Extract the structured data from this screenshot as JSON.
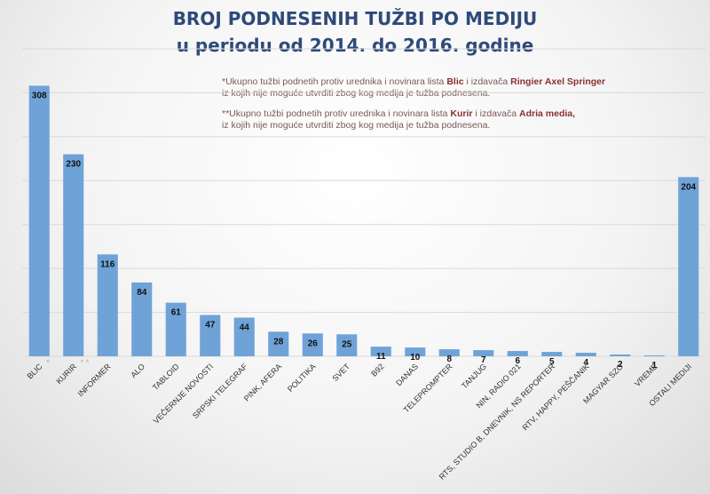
{
  "title": {
    "line1": "BROJ PODNESENIH TUŽBI  PO MEDIJU",
    "line2": "u periodu od 2014. do 2016. godine"
  },
  "notes": {
    "note1_a": "*Ukupno tužbi podnetih protiv urednika i novinara lista ",
    "note1_b": "Blic",
    "note1_c": " i izdavača ",
    "note1_d": "Ringier Axel Springer",
    "note1_e": "iz kojih nije moguće utvrditi zbog kog medija je tužba podnesena.",
    "note2_a": "**Ukupno tužbi podnetih protiv urednika i novinara lista ",
    "note2_b": "Kurir",
    "note2_c": " i izdavača ",
    "note2_d": "Adria media,",
    "note2_e": "iz kojih nije moguće utvrditi zbog kog medija je tužba podnesena."
  },
  "chart_data": {
    "type": "bar",
    "title": "BROJ PODNESENIH TUŽBI  PO MEDIJU u periodu od 2014. do 2016. godine",
    "xlabel": "",
    "ylabel": "",
    "ylim": [
      0,
      350
    ],
    "grid": true,
    "bar_color": "#6fa3d8",
    "categories": [
      "BLIC",
      "KURIR",
      "INFORMER",
      "ALO",
      "TABLOID",
      "VEČERNJE NOVOSTI",
      "SRPSKI TELEGRAF",
      "PINK, AFERA",
      "POLITIKA",
      "SVET",
      "B92",
      "DANAS",
      "TELEPROMPTER",
      "TANJUG",
      "NIN, RADIO 021",
      "RTS, STUDIO B, DNEVNIK, NS REPORTER",
      "RTV, HAPPY, PEŠČANIK",
      "MAGYAR SZO",
      "VREME",
      "OSTALI MEDIJI"
    ],
    "markers": [
      "*",
      "* *",
      "",
      "",
      "",
      "",
      "",
      "",
      "",
      "",
      "",
      "",
      "",
      "",
      "",
      "",
      "",
      "",
      "",
      ""
    ],
    "values": [
      308,
      230,
      116,
      84,
      61,
      47,
      44,
      28,
      26,
      25,
      11,
      10,
      8,
      7,
      6,
      5,
      4,
      2,
      1,
      204
    ]
  }
}
